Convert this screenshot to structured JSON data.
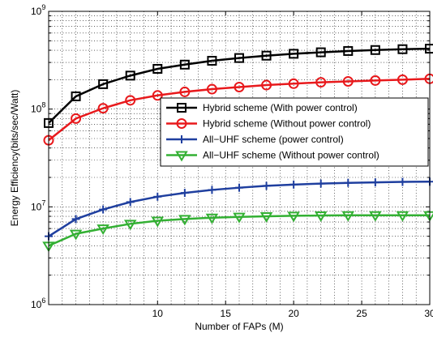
{
  "chart_data": {
    "type": "line",
    "xlabel": "Number of FAPs (M)",
    "ylabel": "Energy Efficiency(bits/sec/Watt)",
    "xlim": [
      2,
      30
    ],
    "ylim": [
      1000000,
      1000000000
    ],
    "yscale": "log",
    "x_ticks": [
      "10",
      "15",
      "20",
      "25",
      "30"
    ],
    "y_ticks": [
      {
        "base": "10",
        "exp": "6"
      },
      {
        "base": "10",
        "exp": "7"
      },
      {
        "base": "10",
        "exp": "8"
      },
      {
        "base": "10",
        "exp": "9"
      }
    ],
    "grid": true,
    "legend_position": "upper-right",
    "x": [
      2,
      4,
      6,
      8,
      10,
      12,
      14,
      16,
      18,
      20,
      22,
      24,
      26,
      28,
      30
    ],
    "series": [
      {
        "name": "Hybrid scheme (With power control)",
        "color": "#000000",
        "marker": "square",
        "values": [
          72000000,
          135000000,
          180000000,
          220000000,
          258000000,
          285000000,
          312000000,
          333000000,
          352000000,
          368000000,
          381000000,
          393000000,
          402000000,
          410000000,
          415000000
        ]
      },
      {
        "name": "Hybrid scheme (Without power control)",
        "color": "#e8191c",
        "marker": "circle",
        "values": [
          48000000,
          80000000,
          102000000,
          123000000,
          138000000,
          150000000,
          160000000,
          168000000,
          176000000,
          182000000,
          188000000,
          192000000,
          196000000,
          200000000,
          204000000
        ]
      },
      {
        "name": "All−UHF scheme (power control)",
        "color": "#1f3f9f",
        "marker": "plus",
        "values": [
          5000000,
          7500000,
          9400000,
          11200000,
          12700000,
          13900000,
          14900000,
          15700000,
          16400000,
          16900000,
          17300000,
          17600000,
          17800000,
          18000000,
          18100000
        ]
      },
      {
        "name": "All−UHF scheme (Without power control)",
        "color": "#33b033",
        "marker": "triangle-down",
        "values": [
          4000000,
          5300000,
          6000000,
          6700000,
          7200000,
          7500000,
          7750000,
          7900000,
          8000000,
          8100000,
          8150000,
          8200000,
          8200000,
          8200000,
          8200000
        ]
      }
    ]
  }
}
